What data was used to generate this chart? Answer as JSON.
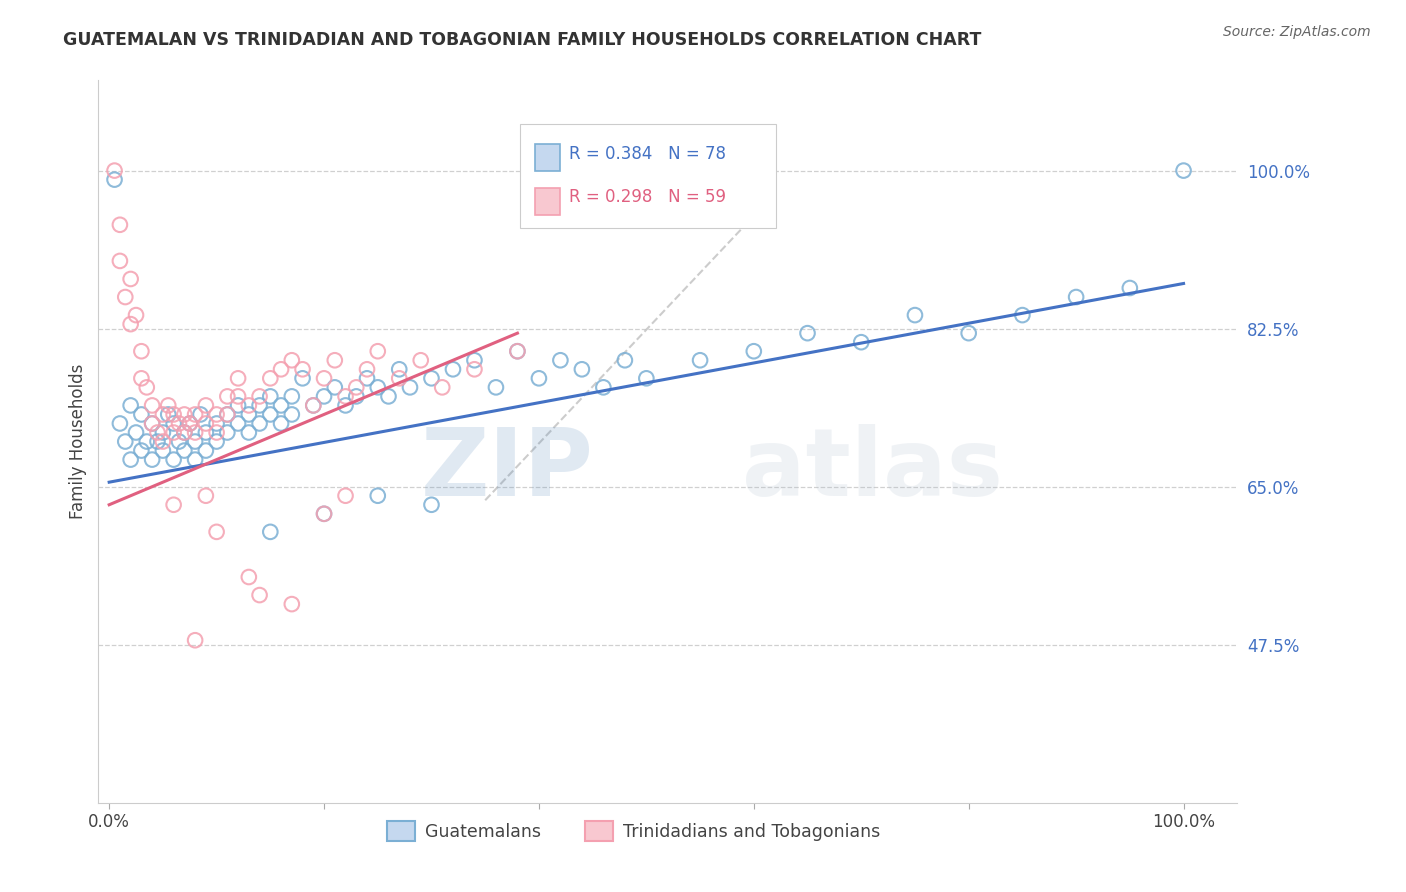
{
  "title": "GUATEMALAN VS TRINIDADIAN AND TOBAGONIAN FAMILY HOUSEHOLDS CORRELATION CHART",
  "source": "Source: ZipAtlas.com",
  "ylabel": "Family Households",
  "blue_color": "#7bafd4",
  "pink_color": "#f4a0b0",
  "blue_line_color": "#4472c4",
  "pink_line_color": "#e06080",
  "dashed_line_color": "#c0c0c0",
  "grid_color": "#d0d0d0",
  "background_color": "#ffffff",
  "ytick_color": "#4472c4",
  "R_blue": 0.384,
  "N_blue": 78,
  "R_pink": 0.298,
  "N_pink": 59,
  "legend_label_blue": "Guatemalans",
  "legend_label_pink": "Trinidadians and Tobagonians",
  "watermark_zip": "ZIP",
  "watermark_atlas": "atlas",
  "blue_scatter_x": [
    0.005,
    0.01,
    0.015,
    0.02,
    0.02,
    0.025,
    0.03,
    0.03,
    0.035,
    0.04,
    0.04,
    0.045,
    0.05,
    0.05,
    0.055,
    0.06,
    0.06,
    0.065,
    0.07,
    0.07,
    0.075,
    0.08,
    0.08,
    0.085,
    0.09,
    0.09,
    0.1,
    0.1,
    0.11,
    0.11,
    0.12,
    0.12,
    0.13,
    0.13,
    0.14,
    0.14,
    0.15,
    0.15,
    0.16,
    0.16,
    0.17,
    0.17,
    0.18,
    0.19,
    0.2,
    0.21,
    0.22,
    0.23,
    0.24,
    0.25,
    0.26,
    0.27,
    0.28,
    0.3,
    0.32,
    0.34,
    0.36,
    0.38,
    0.4,
    0.42,
    0.44,
    0.46,
    0.48,
    0.5,
    0.55,
    0.6,
    0.65,
    0.7,
    0.75,
    0.8,
    0.85,
    0.9,
    0.95,
    1.0,
    0.15,
    0.2,
    0.25,
    0.3
  ],
  "blue_scatter_y": [
    0.99,
    0.72,
    0.7,
    0.68,
    0.74,
    0.71,
    0.69,
    0.73,
    0.7,
    0.68,
    0.72,
    0.7,
    0.69,
    0.71,
    0.73,
    0.68,
    0.72,
    0.7,
    0.71,
    0.69,
    0.72,
    0.7,
    0.68,
    0.73,
    0.71,
    0.69,
    0.72,
    0.7,
    0.73,
    0.71,
    0.74,
    0.72,
    0.73,
    0.71,
    0.74,
    0.72,
    0.73,
    0.75,
    0.74,
    0.72,
    0.75,
    0.73,
    0.77,
    0.74,
    0.75,
    0.76,
    0.74,
    0.75,
    0.77,
    0.76,
    0.75,
    0.78,
    0.76,
    0.77,
    0.78,
    0.79,
    0.76,
    0.8,
    0.77,
    0.79,
    0.78,
    0.76,
    0.79,
    0.77,
    0.79,
    0.8,
    0.82,
    0.81,
    0.84,
    0.82,
    0.84,
    0.86,
    0.87,
    1.0,
    0.6,
    0.62,
    0.64,
    0.63
  ],
  "pink_scatter_x": [
    0.005,
    0.01,
    0.01,
    0.015,
    0.02,
    0.02,
    0.025,
    0.03,
    0.03,
    0.035,
    0.04,
    0.04,
    0.045,
    0.05,
    0.05,
    0.055,
    0.06,
    0.06,
    0.065,
    0.07,
    0.07,
    0.075,
    0.08,
    0.08,
    0.09,
    0.09,
    0.1,
    0.1,
    0.11,
    0.11,
    0.12,
    0.12,
    0.13,
    0.14,
    0.15,
    0.16,
    0.17,
    0.18,
    0.19,
    0.2,
    0.21,
    0.22,
    0.23,
    0.24,
    0.25,
    0.27,
    0.29,
    0.31,
    0.34,
    0.38,
    0.1,
    0.13,
    0.17,
    0.22,
    0.08,
    0.06,
    0.09,
    0.14,
    0.2
  ],
  "pink_scatter_y": [
    1.0,
    0.94,
    0.9,
    0.86,
    0.83,
    0.88,
    0.84,
    0.8,
    0.77,
    0.76,
    0.74,
    0.72,
    0.71,
    0.7,
    0.73,
    0.74,
    0.71,
    0.73,
    0.72,
    0.73,
    0.71,
    0.72,
    0.73,
    0.71,
    0.74,
    0.72,
    0.73,
    0.71,
    0.75,
    0.73,
    0.77,
    0.75,
    0.74,
    0.75,
    0.77,
    0.78,
    0.79,
    0.78,
    0.74,
    0.77,
    0.79,
    0.75,
    0.76,
    0.78,
    0.8,
    0.77,
    0.79,
    0.76,
    0.78,
    0.8,
    0.6,
    0.55,
    0.52,
    0.64,
    0.48,
    0.63,
    0.64,
    0.53,
    0.62
  ]
}
